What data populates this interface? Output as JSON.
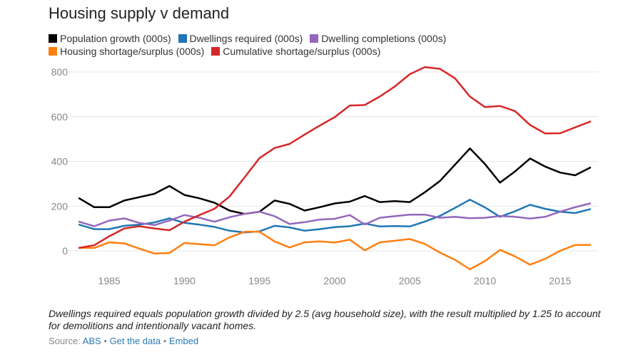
{
  "chart_data": {
    "type": "line",
    "title": "Housing supply v demand",
    "xlabel": "",
    "ylabel": "",
    "xlim": [
      1983,
      2017
    ],
    "ylim": [
      -100,
      850
    ],
    "y_ticks": [
      0,
      200,
      400,
      600,
      800
    ],
    "x_ticks": [
      1985,
      1990,
      1995,
      2000,
      2005,
      2010,
      2015
    ],
    "grid": "horizontal",
    "legend_position": "top-left",
    "x": [
      1983,
      1984,
      1985,
      1986,
      1987,
      1988,
      1989,
      1990,
      1991,
      1992,
      1993,
      1994,
      1995,
      1996,
      1997,
      1998,
      1999,
      2000,
      2001,
      2002,
      2003,
      2004,
      2005,
      2006,
      2007,
      2008,
      2009,
      2010,
      2011,
      2012,
      2013,
      2014,
      2015,
      2016,
      2017
    ],
    "series": [
      {
        "name": "Population growth (000s)",
        "color": "#000000",
        "values": [
          235,
          195,
          195,
          225,
          240,
          255,
          290,
          250,
          235,
          215,
          180,
          165,
          175,
          225,
          210,
          180,
          195,
          212,
          220,
          245,
          218,
          222,
          218,
          262,
          312,
          385,
          458,
          388,
          305,
          355,
          413,
          377,
          350,
          338,
          372
        ]
      },
      {
        "name": "Dwellings required (000s)",
        "color": "#1f77b4",
        "values": [
          117,
          97,
          97,
          112,
          117,
          127,
          145,
          125,
          117,
          107,
          90,
          82,
          87,
          112,
          105,
          90,
          97,
          106,
          110,
          122,
          109,
          111,
          109,
          131,
          156,
          192,
          229,
          194,
          152,
          177,
          206,
          188,
          175,
          169,
          186
        ]
      },
      {
        "name": "Dwelling completions (000s)",
        "color": "#9467bd",
        "values": [
          130,
          110,
          135,
          145,
          125,
          115,
          135,
          160,
          148,
          130,
          150,
          165,
          175,
          155,
          120,
          128,
          140,
          143,
          160,
          118,
          148,
          155,
          162,
          162,
          148,
          152,
          146,
          148,
          156,
          152,
          144,
          152,
          175,
          195,
          212
        ]
      },
      {
        "name": "Housing shortage/surplus (000s)",
        "color": "#ff7f0e",
        "values": [
          13,
          13,
          38,
          33,
          10,
          -12,
          -10,
          35,
          30,
          25,
          60,
          85,
          85,
          42,
          15,
          38,
          42,
          37,
          50,
          2,
          38,
          45,
          53,
          31,
          -8,
          -40,
          -83,
          -46,
          4,
          -25,
          -62,
          -36,
          0,
          26,
          26
        ]
      },
      {
        "name": "Cumulative shortage/surplus (000s)",
        "color": "#d62728",
        "values": [
          13,
          25,
          65,
          100,
          110,
          100,
          92,
          130,
          160,
          188,
          243,
          328,
          415,
          460,
          478,
          520,
          560,
          598,
          650,
          652,
          690,
          735,
          790,
          822,
          814,
          772,
          690,
          643,
          648,
          625,
          563,
          525,
          526,
          552,
          578
        ]
      }
    ],
    "note": "Dwellings required equals population growth divided by 2.5 (avg household size), with the result multiplied by 1.25 to account for demolitions and intentionally vacant homes.",
    "source_label": "Source:",
    "source_link": "ABS",
    "get_data_link": "Get the data",
    "embed_link": "Embed",
    "separator": "•"
  }
}
